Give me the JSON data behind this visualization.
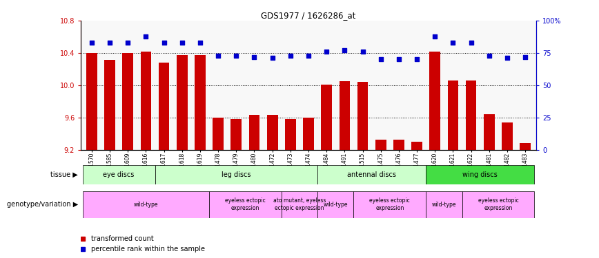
{
  "title": "GDS1977 / 1626286_at",
  "samples": [
    "GSM91570",
    "GSM91585",
    "GSM91609",
    "GSM91616",
    "GSM91617",
    "GSM91618",
    "GSM91619",
    "GSM91478",
    "GSM91479",
    "GSM91480",
    "GSM91472",
    "GSM91473",
    "GSM91474",
    "GSM91484",
    "GSM91491",
    "GSM91515",
    "GSM91475",
    "GSM91476",
    "GSM91477",
    "GSM91620",
    "GSM91621",
    "GSM91622",
    "GSM91481",
    "GSM91482",
    "GSM91483"
  ],
  "bar_values": [
    10.4,
    10.31,
    10.4,
    10.42,
    10.28,
    10.37,
    10.37,
    9.6,
    9.58,
    9.63,
    9.63,
    9.58,
    9.6,
    10.01,
    10.05,
    10.04,
    9.32,
    9.32,
    9.3,
    10.42,
    10.06,
    10.06,
    9.64,
    9.54,
    9.28
  ],
  "dot_values": [
    83,
    83,
    83,
    88,
    83,
    83,
    83,
    73,
    73,
    72,
    71,
    73,
    73,
    76,
    77,
    76,
    70,
    70,
    70,
    88,
    83,
    83,
    73,
    71,
    72
  ],
  "bar_color": "#cc0000",
  "dot_color": "#0000cc",
  "ylim_left": [
    9.2,
    10.8
  ],
  "ylim_right": [
    0,
    100
  ],
  "yticks_left": [
    9.2,
    9.6,
    10.0,
    10.4,
    10.8
  ],
  "yticks_right": [
    0,
    25,
    50,
    75,
    100
  ],
  "ytick_labels_right": [
    "0",
    "25",
    "50",
    "75",
    "100%"
  ],
  "hlines": [
    9.6,
    10.0,
    10.4
  ],
  "tissue_group_data": [
    {
      "label": "eye discs",
      "start": 0,
      "end": 3,
      "color": "#ccffcc"
    },
    {
      "label": "leg discs",
      "start": 4,
      "end": 12,
      "color": "#ccffcc"
    },
    {
      "label": "antennal discs",
      "start": 13,
      "end": 18,
      "color": "#ccffcc"
    },
    {
      "label": "wing discs",
      "start": 19,
      "end": 24,
      "color": "#44dd44"
    }
  ],
  "geno_group_data": [
    {
      "label": "wild-type",
      "start": 0,
      "end": 6
    },
    {
      "label": "eyeless ectopic\nexpression",
      "start": 7,
      "end": 10
    },
    {
      "label": "ato mutant, eyeless\nectopic expression",
      "start": 11,
      "end": 12
    },
    {
      "label": "wild-type",
      "start": 13,
      "end": 14
    },
    {
      "label": "eyeless ectopic\nexpression",
      "start": 15,
      "end": 18
    },
    {
      "label": "wild-type",
      "start": 19,
      "end": 20
    },
    {
      "label": "eyeless ectopic\nexpression",
      "start": 21,
      "end": 24
    }
  ],
  "geno_color": "#ffaaff",
  "legend_items": [
    {
      "label": "transformed count",
      "color": "#cc0000"
    },
    {
      "label": "percentile rank within the sample",
      "color": "#0000cc"
    }
  ]
}
